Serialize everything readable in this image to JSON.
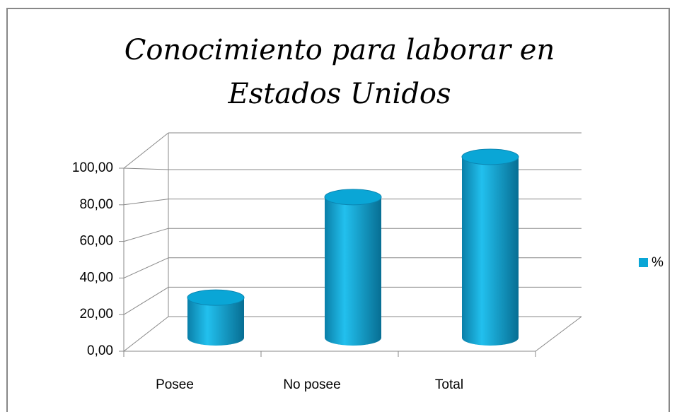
{
  "chart_data": {
    "type": "bar3d",
    "title": "Conocimiento para laborar en Estados Unidos",
    "categories": [
      "Posee",
      "No posee",
      "Total"
    ],
    "series": [
      {
        "name": "%",
        "color": "#0aa6d6",
        "values": [
          22.22,
          77.78,
          100
        ]
      }
    ],
    "ylim": [
      0,
      100
    ],
    "yticks": [
      {
        "value": 0,
        "label": "0,00"
      },
      {
        "value": 20,
        "label": "20,00"
      },
      {
        "value": 40,
        "label": "40,00"
      },
      {
        "value": 60,
        "label": "60,00"
      },
      {
        "value": 80,
        "label": "80,00"
      },
      {
        "value": 100,
        "label": "100,00"
      }
    ],
    "grid": true,
    "legend": "right"
  }
}
